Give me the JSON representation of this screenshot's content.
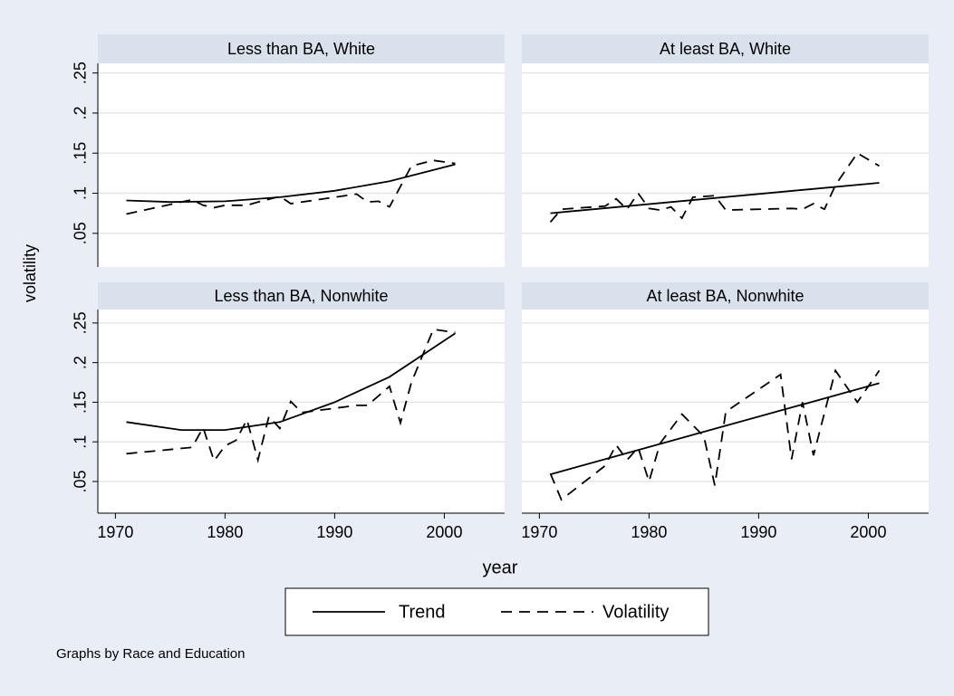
{
  "chart_data": [
    {
      "type": "line",
      "title": "Less than BA, White",
      "xlim": [
        1968.4,
        2005.5
      ],
      "ylim": [
        0.008,
        0.262
      ],
      "yticks": [
        {
          "value": 0.05,
          "label": ".05"
        },
        {
          "value": 0.1,
          "label": ".1"
        },
        {
          "value": 0.15,
          "label": ".15"
        },
        {
          "value": 0.2,
          "label": ".2"
        },
        {
          "value": 0.25,
          "label": ".25"
        }
      ],
      "series": [
        {
          "name": "Trend",
          "color": "#000000",
          "dash": "solid",
          "x": [
            1971,
            1975,
            1980,
            1985,
            1990,
            1995,
            2001
          ],
          "values": [
            0.091,
            0.089,
            0.09,
            0.095,
            0.103,
            0.115,
            0.136
          ]
        },
        {
          "name": "Volatility",
          "color": "#000000",
          "dash": "dashed",
          "x": [
            1971,
            1977,
            1978,
            1979,
            1980,
            1982,
            1983,
            1985,
            1986,
            1992,
            1993,
            1994,
            1995,
            1997,
            1999,
            2001
          ],
          "values": [
            0.074,
            0.092,
            0.085,
            0.082,
            0.085,
            0.085,
            0.089,
            0.096,
            0.087,
            0.099,
            0.089,
            0.09,
            0.083,
            0.134,
            0.141,
            0.137
          ]
        }
      ]
    },
    {
      "type": "line",
      "title": "At least BA, White",
      "xlim": [
        1968.4,
        2005.5
      ],
      "ylim": [
        0.008,
        0.262
      ],
      "yticks": [
        0.05,
        0.1,
        0.15,
        0.2,
        0.25
      ],
      "series": [
        {
          "name": "Trend",
          "color": "#000000",
          "dash": "solid",
          "x": [
            1971,
            2001
          ],
          "values": [
            0.075,
            0.113
          ]
        },
        {
          "name": "Volatility",
          "color": "#000000",
          "dash": "dashed",
          "x": [
            1971,
            1972,
            1976,
            1977,
            1978,
            1979,
            1980,
            1981,
            1982,
            1983,
            1984,
            1986,
            1987,
            1993,
            1994,
            1995,
            1996,
            1997,
            1999,
            2001
          ],
          "values": [
            0.064,
            0.08,
            0.084,
            0.093,
            0.08,
            0.1,
            0.081,
            0.079,
            0.083,
            0.069,
            0.095,
            0.097,
            0.079,
            0.081,
            0.08,
            0.087,
            0.08,
            0.11,
            0.15,
            0.134
          ]
        }
      ]
    },
    {
      "type": "line",
      "title": "Less than BA, Nonwhite",
      "xlim": [
        1968.4,
        2005.5
      ],
      "ylim": [
        0.01,
        0.267
      ],
      "xticks": [
        1970,
        1980,
        1990,
        2000
      ],
      "yticks": [
        {
          "value": 0.05,
          "label": ".05"
        },
        {
          "value": 0.1,
          "label": ".1"
        },
        {
          "value": 0.15,
          "label": ".15"
        },
        {
          "value": 0.2,
          "label": ".2"
        },
        {
          "value": 0.25,
          "label": ".25"
        }
      ],
      "series": [
        {
          "name": "Trend",
          "color": "#000000",
          "dash": "solid",
          "x": [
            1971,
            1976,
            1980,
            1985,
            1990,
            1995,
            2001
          ],
          "values": [
            0.125,
            0.115,
            0.115,
            0.125,
            0.15,
            0.182,
            0.237
          ]
        },
        {
          "name": "Volatility",
          "color": "#000000",
          "dash": "dashed",
          "x": [
            1971,
            1977,
            1978,
            1979,
            1980,
            1981,
            1982,
            1983,
            1984,
            1985,
            1986,
            1987,
            1992,
            1993,
            1995,
            1996,
            1997,
            1999,
            2001
          ],
          "values": [
            0.085,
            0.093,
            0.118,
            0.076,
            0.095,
            0.102,
            0.128,
            0.077,
            0.132,
            0.117,
            0.151,
            0.137,
            0.146,
            0.146,
            0.17,
            0.124,
            0.175,
            0.242,
            0.238
          ]
        }
      ]
    },
    {
      "type": "line",
      "title": "At least BA, Nonwhite",
      "xlim": [
        1968.4,
        2005.5
      ],
      "ylim": [
        0.01,
        0.267
      ],
      "xticks": [
        1970,
        1980,
        1990,
        2000
      ],
      "yticks": [
        0.05,
        0.1,
        0.15,
        0.2,
        0.25
      ],
      "series": [
        {
          "name": "Trend",
          "color": "#000000",
          "dash": "solid",
          "x": [
            1971,
            2001
          ],
          "values": [
            0.059,
            0.174
          ]
        },
        {
          "name": "Volatility",
          "color": "#000000",
          "dash": "dashed",
          "x": [
            1971,
            1972,
            1976,
            1977,
            1978,
            1979,
            1980,
            1981,
            1983,
            1985,
            1986,
            1987,
            1992,
            1993,
            1994,
            1995,
            1997,
            1999,
            2001
          ],
          "values": [
            0.06,
            0.027,
            0.07,
            0.096,
            0.077,
            0.093,
            0.05,
            0.098,
            0.135,
            0.107,
            0.045,
            0.138,
            0.185,
            0.078,
            0.15,
            0.083,
            0.19,
            0.15,
            0.19
          ]
        }
      ]
    }
  ],
  "x_label": "year",
  "y_label": "volatility",
  "note": "Graphs by Race and Education"
}
